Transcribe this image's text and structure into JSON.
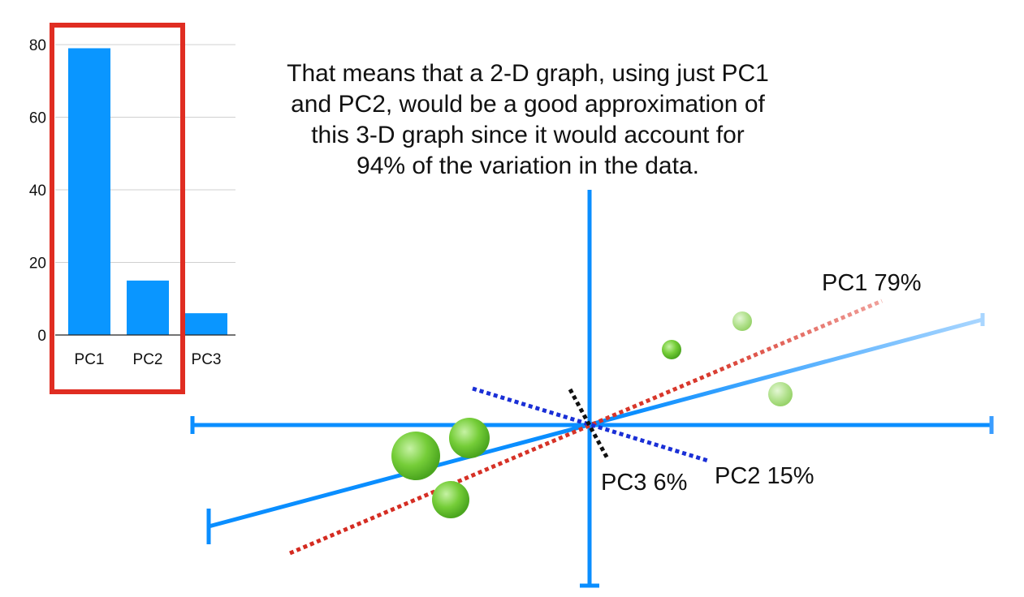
{
  "caption": {
    "lines": [
      "That means that a 2-D graph, using just PC1",
      "and PC2, would be a good approximation of",
      "this 3-D graph since it would account for",
      "94% of the variation in the data."
    ]
  },
  "chart_data": {
    "type": "bar",
    "categories": [
      "PC1",
      "PC2",
      "PC3"
    ],
    "values": [
      79,
      15,
      6
    ],
    "yticks": [
      0,
      20,
      40,
      60,
      80
    ],
    "ylim": [
      0,
      80
    ],
    "grid": true,
    "bar_color": "#0a96ff",
    "highlight": {
      "categories": [
        "PC1",
        "PC2"
      ],
      "color": "#e02d22"
    }
  },
  "diagram": {
    "labels": {
      "pc1": "PC1 79%",
      "pc2": "PC2 15%",
      "pc3": "PC3 6%"
    },
    "colors": {
      "axis": "#0a96ff",
      "pc1_line": "#d42a20",
      "pc2_line": "#1a2fd6",
      "pc3_line": "#111111",
      "point": "#69c52f"
    }
  }
}
